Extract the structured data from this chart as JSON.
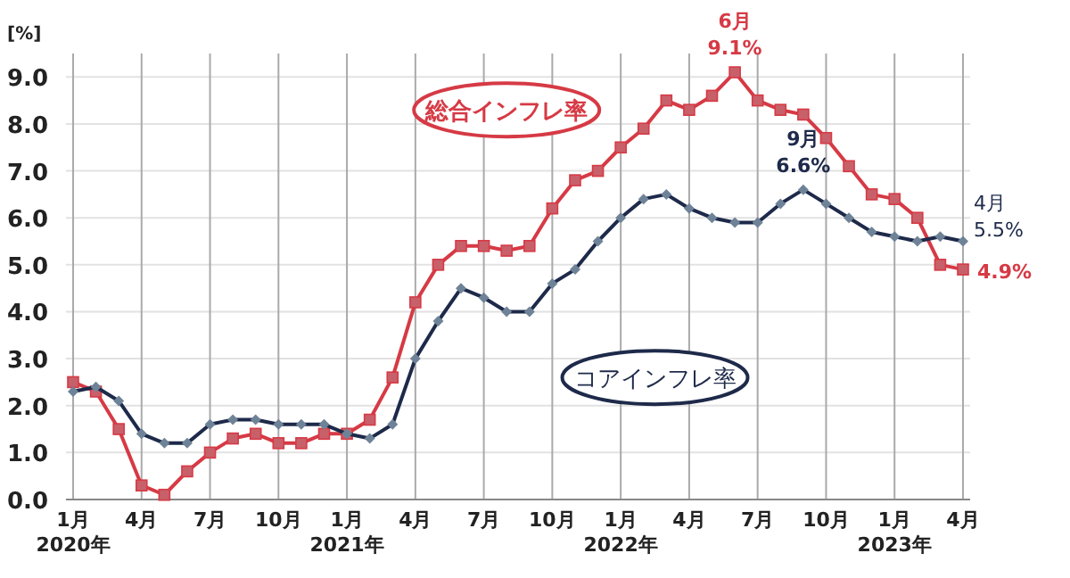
{
  "chart_data": {
    "type": "line",
    "ylabel": "[%]",
    "categories": [
      "1月\n2020年",
      null,
      null,
      "4月",
      null,
      null,
      "7月",
      null,
      null,
      "10月",
      null,
      null,
      "1月\n2021年",
      null,
      null,
      "4月",
      null,
      null,
      "7月",
      null,
      null,
      "10月",
      null,
      null,
      "1月\n2022年",
      null,
      null,
      "4月",
      null,
      null,
      "7月",
      null,
      null,
      "10月",
      null,
      null,
      "1月\n2023年",
      null,
      null,
      "4月"
    ],
    "ylim": [
      0,
      9.5
    ],
    "yticks": [
      {
        "value": 0,
        "label": "0.0"
      },
      {
        "value": 1,
        "label": "1.0"
      },
      {
        "value": 2,
        "label": "2.0"
      },
      {
        "value": 3,
        "label": "3.0"
      },
      {
        "value": 4,
        "label": "4.0"
      },
      {
        "value": 5,
        "label": "5.0"
      },
      {
        "value": 6,
        "label": "6.0"
      },
      {
        "value": 7,
        "label": "7.0"
      },
      {
        "value": 8,
        "label": "8.0"
      },
      {
        "value": 9,
        "label": "9.0"
      }
    ],
    "grid": true,
    "series": [
      {
        "name": "総合インフレ率",
        "color": "#d63a45",
        "marker": "square",
        "values": [
          2.5,
          2.3,
          1.5,
          0.3,
          0.1,
          0.6,
          1.0,
          1.3,
          1.4,
          1.2,
          1.2,
          1.4,
          1.4,
          1.7,
          2.6,
          4.2,
          5.0,
          5.4,
          5.4,
          5.3,
          5.4,
          6.2,
          6.8,
          7.0,
          7.5,
          7.9,
          8.5,
          8.3,
          8.6,
          9.1,
          8.5,
          8.3,
          8.2,
          7.7,
          7.1,
          6.5,
          6.4,
          6.0,
          5.0,
          4.9
        ],
        "value_labels": [
          null,
          null,
          null,
          null,
          null,
          null,
          null,
          null,
          null,
          null,
          null,
          null,
          null,
          null,
          null,
          null,
          null,
          null,
          null,
          null,
          null,
          null,
          null,
          null,
          null,
          null,
          null,
          null,
          null,
          "6月\n9.1%",
          null,
          null,
          null,
          null,
          null,
          null,
          null,
          null,
          null,
          "4.9%"
        ]
      },
      {
        "name": "コアインフレ率",
        "color": "#1e2a4a",
        "marker": "diamond",
        "values": [
          2.3,
          2.4,
          2.1,
          1.4,
          1.2,
          1.2,
          1.6,
          1.7,
          1.7,
          1.6,
          1.6,
          1.6,
          1.4,
          1.3,
          1.6,
          3.0,
          3.8,
          4.5,
          4.3,
          4.0,
          4.0,
          4.6,
          4.9,
          5.5,
          6.0,
          6.4,
          6.5,
          6.2,
          6.0,
          5.9,
          5.9,
          6.3,
          6.6,
          6.3,
          6.0,
          5.7,
          5.6,
          5.5,
          5.6,
          5.5
        ],
        "value_labels": [
          null,
          null,
          null,
          null,
          null,
          null,
          null,
          null,
          null,
          null,
          null,
          null,
          null,
          null,
          null,
          null,
          null,
          null,
          null,
          null,
          null,
          null,
          null,
          null,
          null,
          null,
          null,
          null,
          null,
          null,
          null,
          null,
          "9月\n6.6%",
          null,
          null,
          null,
          null,
          null,
          null,
          "4月\n5.5%"
        ]
      }
    ]
  }
}
